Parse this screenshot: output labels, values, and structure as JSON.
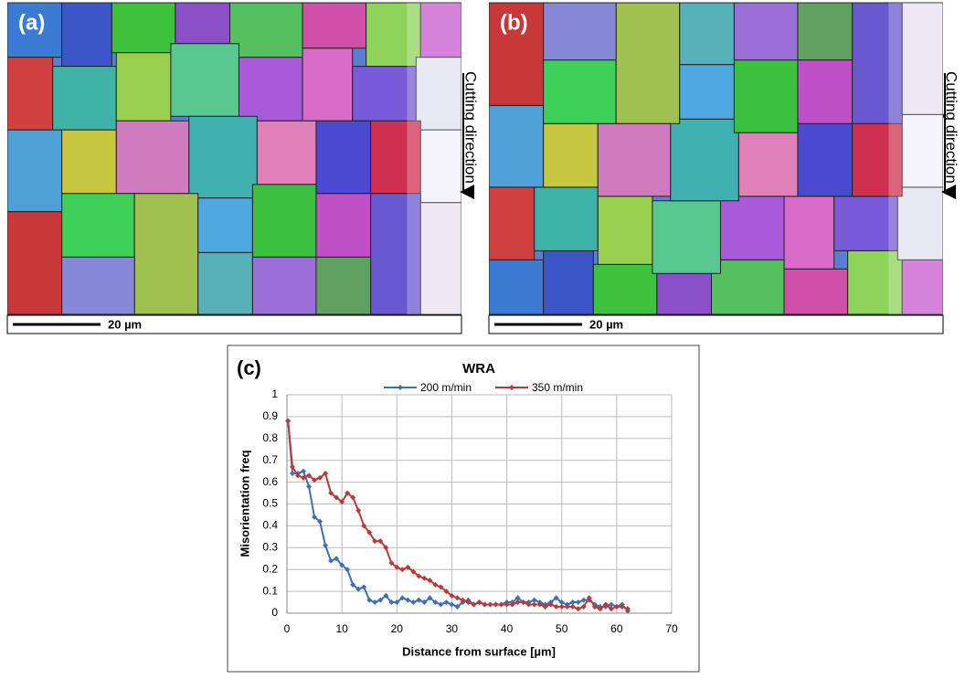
{
  "panels": [
    {
      "label": "(a)",
      "scale_bar": "20 µm",
      "direction": "Cutting direction"
    },
    {
      "label": "(b)",
      "scale_bar": "20 µm",
      "direction": "Cutting direction"
    }
  ],
  "chart_data": {
    "type": "line",
    "panel_label": "(c)",
    "title": "WRA",
    "x_label": "Distance from surface [µm]",
    "y_label": "Misorientation freq",
    "x": [
      0.2,
      1,
      2,
      3,
      4,
      5,
      6,
      7,
      8,
      9,
      10,
      11,
      12,
      13,
      14,
      15,
      16,
      17,
      18,
      19,
      20,
      21,
      22,
      23,
      24,
      25,
      26,
      27,
      28,
      29,
      30,
      31,
      32,
      33,
      34,
      35,
      36,
      37,
      38,
      39,
      40,
      41,
      42,
      43,
      44,
      45,
      46,
      47,
      48,
      49,
      50,
      51,
      52,
      53,
      54,
      55,
      56,
      57,
      58,
      59,
      60,
      61,
      62
    ],
    "series": [
      {
        "name": "200 m/min",
        "color": "#3f6fb5",
        "values": [
          0.88,
          0.64,
          0.64,
          0.65,
          0.58,
          0.44,
          0.42,
          0.31,
          0.24,
          0.25,
          0.22,
          0.2,
          0.13,
          0.11,
          0.12,
          0.06,
          0.05,
          0.06,
          0.08,
          0.05,
          0.05,
          0.07,
          0.06,
          0.05,
          0.06,
          0.05,
          0.07,
          0.05,
          0.04,
          0.05,
          0.04,
          0.03,
          0.05,
          0.06,
          0.04,
          0.05,
          0.04,
          0.04,
          0.04,
          0.04,
          0.05,
          0.05,
          0.07,
          0.05,
          0.05,
          0.06,
          0.05,
          0.04,
          0.05,
          0.07,
          0.05,
          0.04,
          0.05,
          0.05,
          0.06,
          0.06,
          0.04,
          0.03,
          0.03,
          0.04,
          0.03,
          0.04,
          0.01
        ]
      },
      {
        "name": "350 m/min",
        "color": "#b83a3a",
        "values": [
          0.88,
          0.67,
          0.63,
          0.62,
          0.63,
          0.61,
          0.62,
          0.64,
          0.55,
          0.53,
          0.51,
          0.55,
          0.53,
          0.47,
          0.4,
          0.37,
          0.33,
          0.33,
          0.3,
          0.23,
          0.21,
          0.2,
          0.21,
          0.19,
          0.17,
          0.16,
          0.15,
          0.13,
          0.12,
          0.1,
          0.08,
          0.07,
          0.06,
          0.05,
          0.04,
          0.05,
          0.04,
          0.04,
          0.04,
          0.04,
          0.04,
          0.04,
          0.05,
          0.05,
          0.04,
          0.04,
          0.04,
          0.03,
          0.04,
          0.03,
          0.03,
          0.03,
          0.03,
          0.02,
          0.03,
          0.07,
          0.03,
          0.02,
          0.04,
          0.02,
          0.03,
          0.03,
          0.02
        ]
      }
    ],
    "xlim": [
      0,
      70
    ],
    "xticks": [
      0,
      10,
      20,
      30,
      40,
      50,
      60,
      70
    ],
    "ylim": [
      0,
      1
    ],
    "yticks": [
      0,
      0.1,
      0.2,
      0.3,
      0.4,
      0.5,
      0.6,
      0.7,
      0.8,
      0.9,
      1
    ],
    "grid": true
  }
}
